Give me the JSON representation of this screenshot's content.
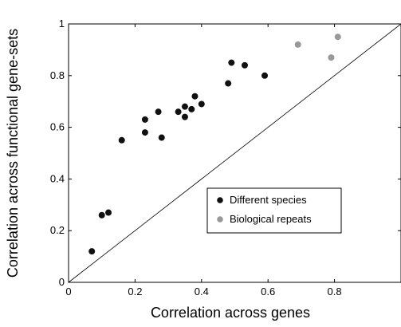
{
  "chart_data": {
    "type": "scatter",
    "title": "",
    "xlabel": "Correlation across genes",
    "ylabel": "Correlation across functional gene-sets",
    "xlim": [
      0,
      1
    ],
    "ylim": [
      0,
      1
    ],
    "x_ticks": [
      "0",
      "0.2",
      "0.4",
      "0.6",
      "0.8"
    ],
    "y_ticks": [
      "0",
      "0.2",
      "0.4",
      "0.6",
      "0.8",
      "1"
    ],
    "grid": false,
    "legend_position": "lower-right",
    "reference_line": "y = x",
    "series": [
      {
        "name": "Different species",
        "color": "#111111",
        "points": [
          {
            "x": 0.07,
            "y": 0.12
          },
          {
            "x": 0.1,
            "y": 0.26
          },
          {
            "x": 0.12,
            "y": 0.27
          },
          {
            "x": 0.16,
            "y": 0.55
          },
          {
            "x": 0.23,
            "y": 0.58
          },
          {
            "x": 0.23,
            "y": 0.63
          },
          {
            "x": 0.27,
            "y": 0.66
          },
          {
            "x": 0.28,
            "y": 0.56
          },
          {
            "x": 0.33,
            "y": 0.66
          },
          {
            "x": 0.35,
            "y": 0.68
          },
          {
            "x": 0.35,
            "y": 0.64
          },
          {
            "x": 0.37,
            "y": 0.67
          },
          {
            "x": 0.38,
            "y": 0.72
          },
          {
            "x": 0.4,
            "y": 0.69
          },
          {
            "x": 0.48,
            "y": 0.77
          },
          {
            "x": 0.49,
            "y": 0.85
          },
          {
            "x": 0.53,
            "y": 0.84
          },
          {
            "x": 0.59,
            "y": 0.8
          }
        ]
      },
      {
        "name": "Biological repeats",
        "color": "#999999",
        "points": [
          {
            "x": 0.69,
            "y": 0.92
          },
          {
            "x": 0.79,
            "y": 0.87
          },
          {
            "x": 0.81,
            "y": 0.95
          }
        ]
      }
    ]
  }
}
